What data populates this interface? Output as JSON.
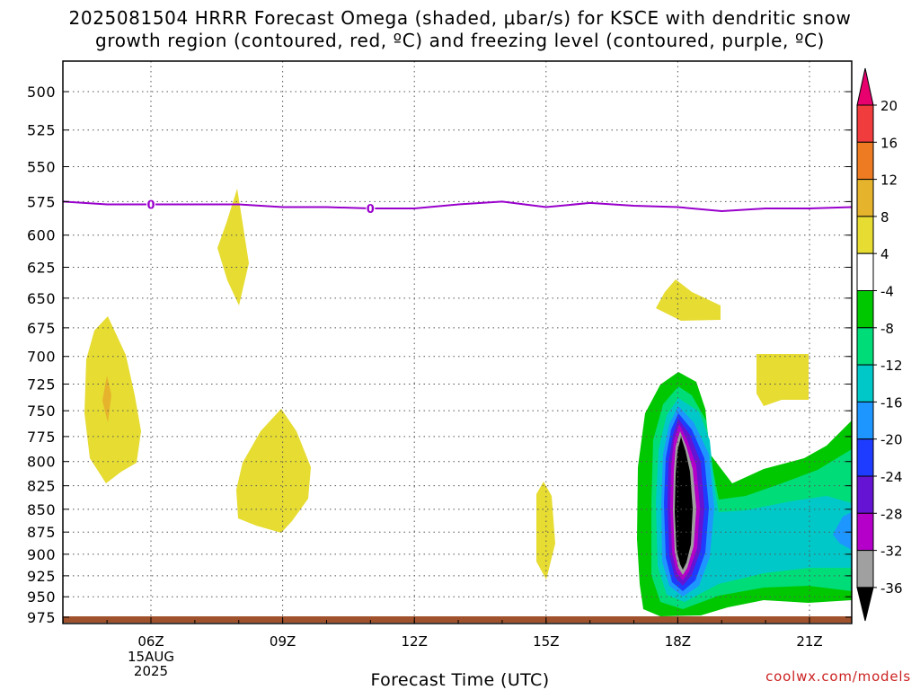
{
  "header": {
    "title_line1": "2025081504 HRRR Forecast Omega (shaded, μbar/s) for KSCE with dendritic snow",
    "title_line2": "growth region (contoured, red, ºC) and freezing level (contoured, purple, ºC)"
  },
  "footer": {
    "credit": "coolwx.com/models"
  },
  "chart_data": {
    "type": "time-height contour",
    "xlabel": "Forecast Time (UTC)",
    "x_ticks": [
      "06Z",
      "09Z",
      "12Z",
      "15Z",
      "18Z",
      "21Z"
    ],
    "x_hours": [
      6,
      9,
      12,
      15,
      18,
      21
    ],
    "x_date_label": [
      "15AUG",
      "2025"
    ],
    "xlim": [
      4,
      22
    ],
    "y_ticks": [
      500,
      525,
      550,
      575,
      600,
      625,
      650,
      675,
      700,
      725,
      750,
      775,
      800,
      825,
      850,
      875,
      900,
      925,
      950,
      975
    ],
    "y_scale": "log pressure (hPa)",
    "ylim": [
      485,
      985
    ],
    "grid": true,
    "freezing_level": {
      "color": "#9900cc",
      "label": "0",
      "label_hours": [
        6,
        11
      ],
      "points": [
        [
          4,
          575
        ],
        [
          5,
          577
        ],
        [
          6,
          577
        ],
        [
          7,
          577
        ],
        [
          8,
          577
        ],
        [
          9,
          579
        ],
        [
          10,
          579
        ],
        [
          11,
          580
        ],
        [
          12,
          580
        ],
        [
          13,
          577
        ],
        [
          14,
          575
        ],
        [
          15,
          579
        ],
        [
          16,
          576
        ],
        [
          17,
          578
        ],
        [
          18,
          579
        ],
        [
          19,
          582
        ],
        [
          20,
          580
        ],
        [
          21,
          580
        ],
        [
          22,
          579
        ]
      ]
    },
    "colorbar": {
      "labels": [
        "20",
        "16",
        "12",
        "8",
        "4",
        "-4",
        "-8",
        "-12",
        "-16",
        "-20",
        "-24",
        "-28",
        "-32",
        "-36"
      ],
      "colors": [
        "#e8006e",
        "#f03c3c",
        "#ee7a22",
        "#e6b32c",
        "#e6dc32",
        "#ffffff",
        "#00c800",
        "#00dc78",
        "#00c8c8",
        "#1e96ff",
        "#1e3cff",
        "#6414d2",
        "#b400c8",
        "#a0a0a0",
        "#000000"
      ]
    }
  }
}
